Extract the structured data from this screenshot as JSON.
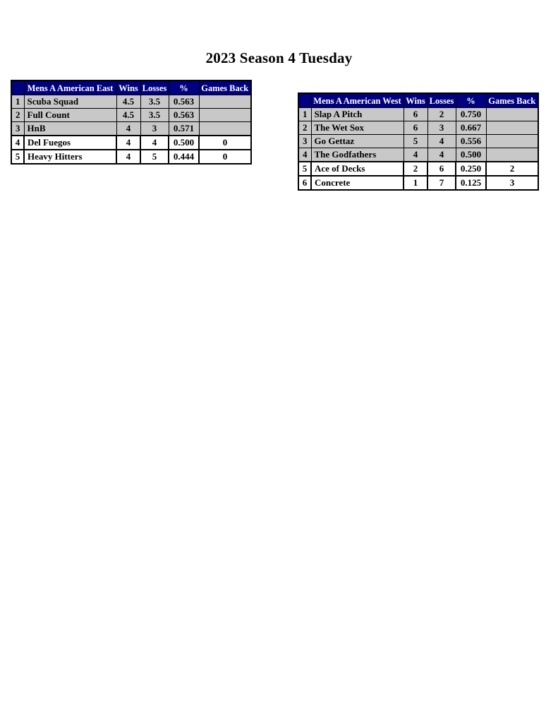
{
  "page": {
    "title": "2023 Season 4 Tuesday"
  },
  "columns": {
    "wins": "Wins",
    "losses": "Losses",
    "pct": "%",
    "games_back": "Games Back"
  },
  "colors": {
    "header_bg": "#000080",
    "header_text": "#FFFFFF",
    "row_gray": "#C8C8C8",
    "row_white": "#FFFFFF",
    "border": "#000000"
  },
  "tables": [
    {
      "name": "Mens A American East",
      "rows": [
        {
          "rank": "1",
          "team": "Scuba Squad",
          "wins": "4.5",
          "losses": "3.5",
          "pct": "0.563",
          "gb": "",
          "highlight": false
        },
        {
          "rank": "2",
          "team": "Full Count",
          "wins": "4.5",
          "losses": "3.5",
          "pct": "0.563",
          "gb": "",
          "highlight": false
        },
        {
          "rank": "3",
          "team": "HnB",
          "wins": "4",
          "losses": "3",
          "pct": "0.571",
          "gb": "",
          "highlight": false
        },
        {
          "rank": "4",
          "team": "Del Fuegos",
          "wins": "4",
          "losses": "4",
          "pct": "0.500",
          "gb": "0",
          "highlight": true
        },
        {
          "rank": "5",
          "team": "Heavy Hitters",
          "wins": "4",
          "losses": "5",
          "pct": "0.444",
          "gb": "0",
          "highlight": true
        }
      ]
    },
    {
      "name": "Mens A American West",
      "rows": [
        {
          "rank": "1",
          "team": "Slap A Pitch",
          "wins": "6",
          "losses": "2",
          "pct": "0.750",
          "gb": "",
          "highlight": false
        },
        {
          "rank": "2",
          "team": "The Wet Sox",
          "wins": "6",
          "losses": "3",
          "pct": "0.667",
          "gb": "",
          "highlight": false
        },
        {
          "rank": "3",
          "team": "Go Gettaz",
          "wins": "5",
          "losses": "4",
          "pct": "0.556",
          "gb": "",
          "highlight": false
        },
        {
          "rank": "4",
          "team": "The Godfathers",
          "wins": "4",
          "losses": "4",
          "pct": "0.500",
          "gb": "",
          "highlight": false
        },
        {
          "rank": "5",
          "team": "Ace of Decks",
          "wins": "2",
          "losses": "6",
          "pct": "0.250",
          "gb": "2",
          "highlight": true
        },
        {
          "rank": "6",
          "team": "Concrete",
          "wins": "1",
          "losses": "7",
          "pct": "0.125",
          "gb": "3",
          "highlight": true
        }
      ]
    }
  ]
}
